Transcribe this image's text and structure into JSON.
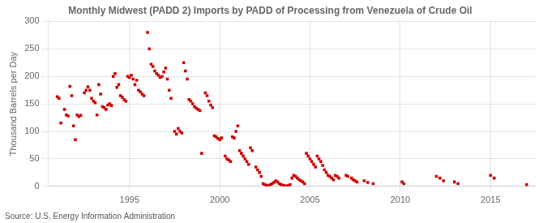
{
  "chart_data": {
    "type": "scatter",
    "title": "Monthly Midwest (PADD 2) Imports by PADD of Processing from Venezuela of Crude Oil",
    "ylabel": "Thousand Barrels per Day",
    "annotations": [
      "Source: U.S. Energy Information Administration"
    ],
    "color": "#cc0000",
    "marker": "square",
    "grid": true,
    "xlim": [
      1990.5,
      2017.5
    ],
    "ylim": [
      0,
      300
    ],
    "xticks": [
      1995,
      2000,
      2005,
      2010,
      2015
    ],
    "yticks": [
      0,
      50,
      100,
      150,
      200,
      250,
      300
    ],
    "x": [
      1991.0,
      1991.1,
      1991.2,
      1991.4,
      1991.5,
      1991.6,
      1991.7,
      1991.8,
      1991.9,
      1992.0,
      1992.1,
      1992.2,
      1992.3,
      1992.5,
      1992.6,
      1992.7,
      1992.8,
      1992.9,
      1993.0,
      1993.1,
      1993.2,
      1993.3,
      1993.4,
      1993.5,
      1993.6,
      1993.7,
      1993.8,
      1993.9,
      1994.0,
      1994.1,
      1994.2,
      1994.3,
      1994.4,
      1994.5,
      1994.6,
      1994.7,
      1994.8,
      1994.9,
      1995.0,
      1995.1,
      1995.2,
      1995.3,
      1995.4,
      1995.5,
      1995.6,
      1995.7,
      1995.8,
      1996.0,
      1996.1,
      1996.2,
      1996.3,
      1996.4,
      1996.5,
      1996.6,
      1996.7,
      1996.8,
      1996.9,
      1997.0,
      1997.1,
      1997.2,
      1997.3,
      1997.5,
      1997.6,
      1997.7,
      1997.8,
      1997.9,
      1998.0,
      1998.1,
      1998.2,
      1998.3,
      1998.4,
      1998.5,
      1998.6,
      1998.7,
      1998.8,
      1998.9,
      1999.0,
      1999.2,
      1999.3,
      1999.4,
      1999.5,
      1999.6,
      1999.7,
      1999.8,
      1999.9,
      2000.0,
      2000.1,
      2000.3,
      2000.4,
      2000.5,
      2000.6,
      2000.7,
      2000.8,
      2000.9,
      2001.0,
      2001.1,
      2001.2,
      2001.3,
      2001.4,
      2001.5,
      2001.6,
      2001.7,
      2001.8,
      2002.0,
      2002.1,
      2002.2,
      2002.3,
      2002.4,
      2002.5,
      2002.6,
      2002.7,
      2002.8,
      2002.9,
      2003.0,
      2003.1,
      2003.2,
      2003.3,
      2003.4,
      2003.5,
      2003.6,
      2003.7,
      2003.8,
      2003.9,
      2004.0,
      2004.1,
      2004.2,
      2004.3,
      2004.4,
      2004.5,
      2004.6,
      2004.7,
      2004.8,
      2004.9,
      2005.0,
      2005.1,
      2005.2,
      2005.3,
      2005.4,
      2005.5,
      2005.6,
      2005.7,
      2005.8,
      2005.9,
      2006.0,
      2006.1,
      2006.2,
      2006.3,
      2006.4,
      2006.5,
      2006.6,
      2007.0,
      2007.1,
      2007.3,
      2007.4,
      2007.5,
      2007.6,
      2008.0,
      2008.2,
      2008.5,
      2010.1,
      2010.2,
      2012.0,
      2012.2,
      2012.4,
      2013.0,
      2013.2,
      2015.0,
      2015.2,
      2017.0
    ],
    "values": [
      163,
      160,
      115,
      140,
      130,
      128,
      182,
      165,
      110,
      85,
      130,
      127,
      129,
      170,
      175,
      181,
      175,
      160,
      155,
      152,
      130,
      185,
      168,
      145,
      143,
      140,
      148,
      150,
      147,
      200,
      205,
      180,
      185,
      165,
      162,
      158,
      155,
      200,
      198,
      202,
      195,
      185,
      193,
      175,
      172,
      168,
      165,
      280,
      250,
      222,
      218,
      210,
      205,
      202,
      198,
      200,
      208,
      215,
      195,
      175,
      160,
      100,
      95,
      105,
      100,
      97,
      225,
      210,
      195,
      158,
      155,
      150,
      145,
      142,
      140,
      138,
      60,
      170,
      165,
      155,
      148,
      143,
      92,
      90,
      87,
      85,
      88,
      55,
      50,
      48,
      45,
      90,
      88,
      100,
      110,
      65,
      60,
      55,
      50,
      45,
      40,
      70,
      65,
      35,
      30,
      25,
      18,
      5,
      3,
      2,
      1,
      3,
      5,
      7,
      10,
      8,
      5,
      3,
      2,
      1,
      0,
      2,
      3,
      15,
      20,
      18,
      15,
      12,
      10,
      8,
      5,
      60,
      55,
      50,
      45,
      40,
      35,
      55,
      50,
      45,
      38,
      30,
      25,
      20,
      18,
      15,
      12,
      20,
      18,
      15,
      20,
      18,
      15,
      12,
      10,
      8,
      10,
      7,
      5,
      8,
      5,
      18,
      15,
      10,
      8,
      5,
      20,
      15,
      3
    ]
  }
}
